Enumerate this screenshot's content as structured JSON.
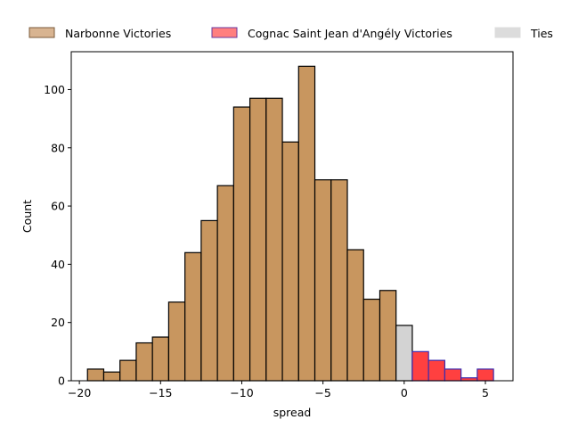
{
  "chart_data": {
    "type": "bar",
    "title": "",
    "xlabel": "spread",
    "ylabel": "Count",
    "xlim": [
      -20.5,
      6.7
    ],
    "ylim": [
      0,
      113
    ],
    "xticks": [
      -20,
      -15,
      -10,
      -5,
      0,
      5
    ],
    "xtick_labels": [
      "−20",
      "−15",
      "−10",
      "−5",
      "0",
      "5"
    ],
    "yticks": [
      0,
      20,
      40,
      60,
      80,
      100
    ],
    "ytick_labels": [
      "0",
      "20",
      "40",
      "60",
      "80",
      "100"
    ],
    "grid": false,
    "legend_position": "top, above plot",
    "bin_width": 1.0,
    "series": [
      {
        "name": "Narbonne Victories",
        "color": "#c8965f",
        "legend_color": "#d8b491",
        "edge_color": "#000000",
        "bins": [
          {
            "x0": -19.5,
            "count": 4
          },
          {
            "x0": -18.5,
            "count": 3
          },
          {
            "x0": -17.5,
            "count": 7
          },
          {
            "x0": -16.5,
            "count": 13
          },
          {
            "x0": -15.5,
            "count": 15
          },
          {
            "x0": -14.5,
            "count": 27
          },
          {
            "x0": -13.5,
            "count": 44
          },
          {
            "x0": -12.5,
            "count": 55
          },
          {
            "x0": -11.5,
            "count": 67
          },
          {
            "x0": -10.5,
            "count": 94
          },
          {
            "x0": -9.5,
            "count": 97
          },
          {
            "x0": -8.5,
            "count": 97
          },
          {
            "x0": -7.5,
            "count": 82
          },
          {
            "x0": -6.5,
            "count": 108
          },
          {
            "x0": -5.5,
            "count": 69
          },
          {
            "x0": -4.5,
            "count": 69
          },
          {
            "x0": -3.5,
            "count": 45
          },
          {
            "x0": -2.5,
            "count": 28
          },
          {
            "x0": -1.5,
            "count": 31
          }
        ]
      },
      {
        "name": "Ties",
        "color": "#d3d3d3",
        "legend_color": "#dcdcdc",
        "edge_color": "#000000",
        "bins": [
          {
            "x0": -0.5,
            "count": 19
          }
        ]
      },
      {
        "name": "Cognac Saint Jean d'Angély Victories",
        "color": "#ff4040",
        "legend_color": "#ff7f7f",
        "edge_color": "#3b2bb0",
        "bins": [
          {
            "x0": 0.5,
            "count": 10
          },
          {
            "x0": 1.5,
            "count": 7
          },
          {
            "x0": 2.5,
            "count": 4
          },
          {
            "x0": 3.5,
            "count": 1
          },
          {
            "x0": 4.5,
            "count": 4
          }
        ]
      }
    ],
    "legend": [
      {
        "label": "Narbonne Victories",
        "color": "#d8b491",
        "edge": "#7a5a3a"
      },
      {
        "label": "Cognac Saint Jean d'Angély Victories",
        "color": "#ff7f7f",
        "edge": "#6a3aa0"
      },
      {
        "label": "Ties",
        "color": "#dcdcdc",
        "edge": "#dcdcdc"
      }
    ]
  }
}
